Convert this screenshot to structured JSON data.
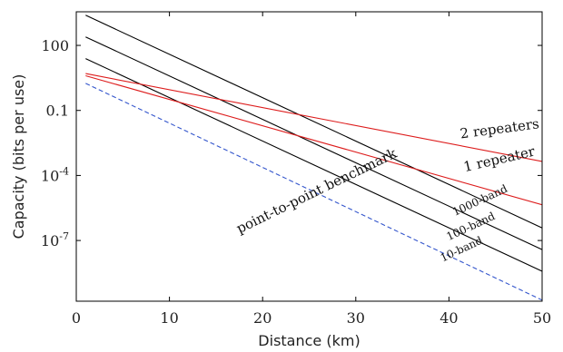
{
  "chart_data": {
    "type": "line",
    "title": "",
    "xlabel": "Distance (km)",
    "ylabel": "Capacity (bits per use)",
    "xlim": [
      0,
      50
    ],
    "ylim_log10": [
      -9.8,
      3.55
    ],
    "yscale": "log",
    "grid": false,
    "x_ticks": [
      {
        "value": 0,
        "label": "0"
      },
      {
        "value": 10,
        "label": "10"
      },
      {
        "value": 20,
        "label": "20"
      },
      {
        "value": 30,
        "label": "30"
      },
      {
        "value": 40,
        "label": "40"
      },
      {
        "value": 50,
        "label": "50"
      }
    ],
    "y_ticks": [
      {
        "log10": 2,
        "base": "100",
        "exp": ""
      },
      {
        "log10": -1,
        "base": "0.1",
        "exp": ""
      },
      {
        "log10": -4,
        "base": "10",
        "exp": "-4"
      },
      {
        "log10": -7,
        "base": "10",
        "exp": "-7"
      }
    ],
    "series": [
      {
        "key": "s1000",
        "color": "#000000",
        "dashed": false,
        "x": [
          1,
          50
        ],
        "log10_y": [
          3.39,
          -6.42
        ]
      },
      {
        "key": "s100",
        "color": "#000000",
        "dashed": false,
        "x": [
          1,
          50
        ],
        "log10_y": [
          2.39,
          -7.42
        ]
      },
      {
        "key": "s10",
        "color": "#000000",
        "dashed": false,
        "x": [
          1,
          50
        ],
        "log10_y": [
          1.39,
          -8.42
        ]
      },
      {
        "key": "s2rep",
        "color": "#dd1c1c",
        "dashed": false,
        "x": [
          1,
          50
        ],
        "log10_y": [
          0.7,
          -3.35
        ]
      },
      {
        "key": "s1rep",
        "color": "#dd1c1c",
        "dashed": false,
        "x": [
          1,
          50
        ],
        "log10_y": [
          0.6,
          -5.35
        ]
      },
      {
        "key": "sbench",
        "color": "#3355cc",
        "dashed": true,
        "x": [
          1,
          50
        ],
        "log10_y": [
          0.25,
          -9.75
        ]
      }
    ],
    "annotations": [
      {
        "key": "a2rep",
        "text": "2 repeaters",
        "x": 45.5,
        "log10_y": -2.05,
        "angle": -7.5,
        "size": 15
      },
      {
        "key": "a1rep",
        "text": "1 repeater",
        "x": 45.5,
        "log10_y": -3.45,
        "angle": -13,
        "size": 15
      },
      {
        "key": "a1000",
        "text": "1000-band",
        "x": 43.5,
        "log10_y": -5.3,
        "angle": -25,
        "size": 12
      },
      {
        "key": "a100",
        "text": "100-band",
        "x": 42.5,
        "log10_y": -6.5,
        "angle": -25,
        "size": 12
      },
      {
        "key": "a10",
        "text": "10-band",
        "x": 41.5,
        "log10_y": -7.55,
        "angle": -25,
        "size": 12
      },
      {
        "key": "abench",
        "text": "point-to-point benchmark",
        "x": 26,
        "log10_y": -4.9,
        "angle": -26,
        "size": 15
      }
    ]
  }
}
